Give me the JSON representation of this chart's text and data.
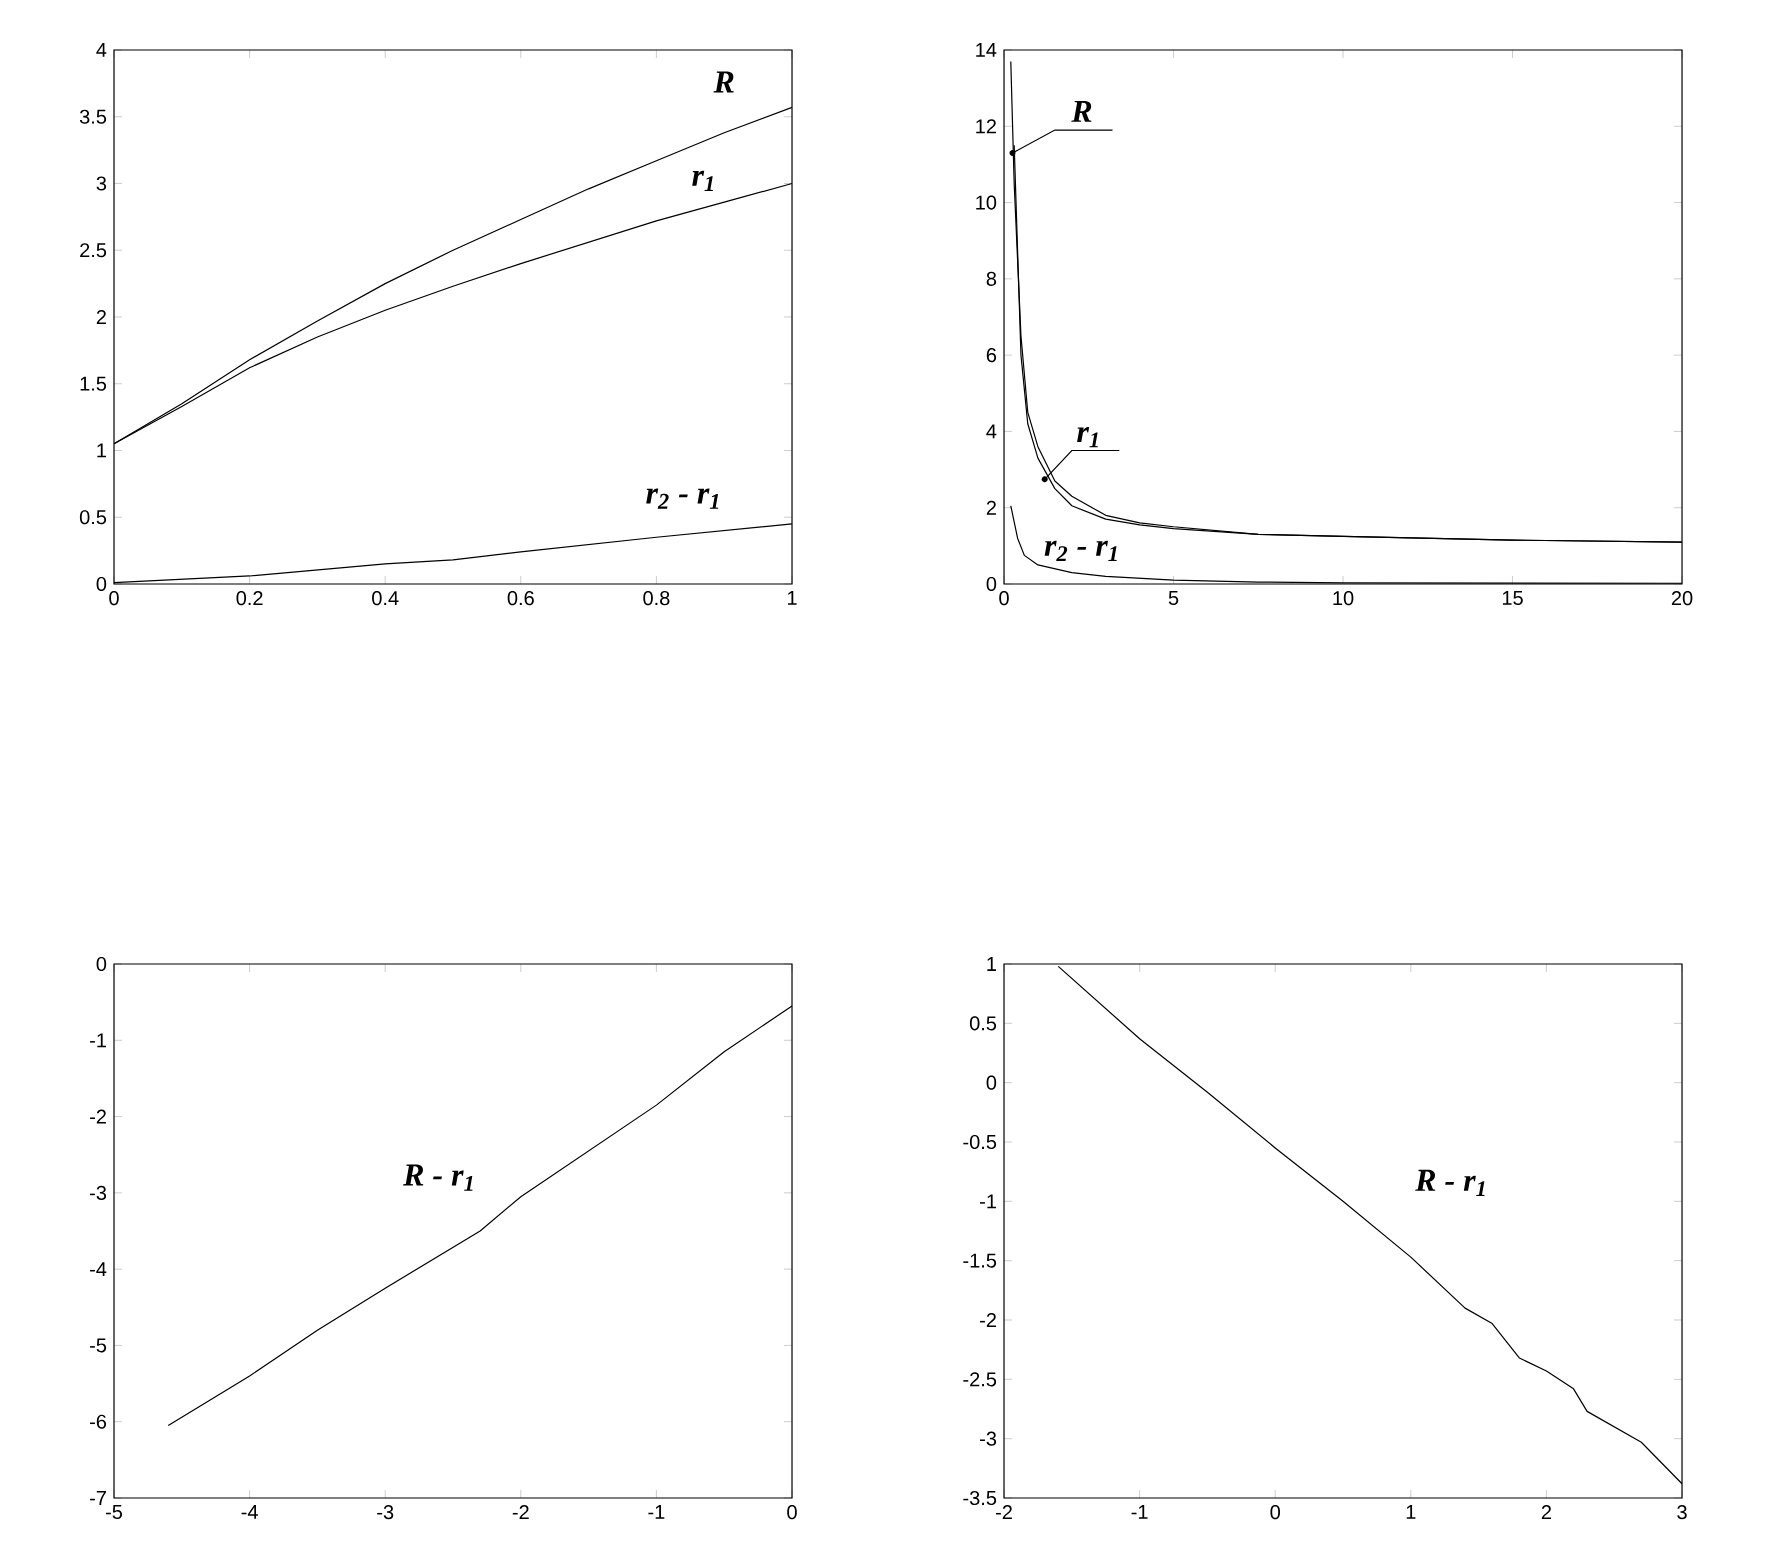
{
  "chart_data": [
    {
      "type": "line",
      "xlim": [
        0,
        1
      ],
      "ylim": [
        0,
        4
      ],
      "xticks": [
        0,
        0.2,
        0.4,
        0.6,
        0.8,
        1
      ],
      "yticks": [
        0,
        0.5,
        1,
        1.5,
        2,
        2.5,
        3,
        3.5,
        4
      ],
      "grid": false,
      "line_style": "solid",
      "series": [
        {
          "name": "R",
          "color": "#000000",
          "x": [
            0,
            0.1,
            0.2,
            0.3,
            0.4,
            0.5,
            0.6,
            0.7,
            0.8,
            0.9,
            1
          ],
          "values": [
            1.05,
            1.35,
            1.68,
            1.97,
            2.25,
            2.5,
            2.73,
            2.96,
            3.17,
            3.38,
            3.57
          ]
        },
        {
          "name": "r$_{1}$",
          "color": "#000000",
          "x": [
            0,
            0.1,
            0.2,
            0.3,
            0.4,
            0.5,
            0.6,
            0.7,
            0.8,
            0.9,
            1
          ],
          "values": [
            1.05,
            1.33,
            1.62,
            1.85,
            2.05,
            2.23,
            2.4,
            2.56,
            2.72,
            2.86,
            3.0
          ]
        },
        {
          "name": "r$_{2}$ - r$_{1}$",
          "color": "#000000",
          "x": [
            0,
            0.2,
            0.4,
            0.5,
            0.6,
            0.8,
            1
          ],
          "values": [
            0.01,
            0.06,
            0.15,
            0.18,
            0.24,
            0.35,
            0.45
          ]
        }
      ]
    },
    {
      "type": "line",
      "xlim": [
        0,
        20
      ],
      "ylim": [
        0,
        14
      ],
      "xticks": [
        0,
        5,
        10,
        15,
        20
      ],
      "yticks": [
        0,
        2,
        4,
        6,
        8,
        10,
        12,
        14
      ],
      "grid": false,
      "line_style": "solid",
      "series": [
        {
          "name": "R",
          "color": "#000000",
          "x": [
            0.2,
            0.3,
            0.5,
            0.7,
            1,
            1.5,
            2,
            3,
            4,
            5,
            7.5,
            10,
            15,
            20
          ],
          "values": [
            13.7,
            10.5,
            6.5,
            4.5,
            3.6,
            2.7,
            2.3,
            1.8,
            1.6,
            1.5,
            1.3,
            1.25,
            1.15,
            1.1
          ]
        },
        {
          "name": "r$_{1}$",
          "color": "#000000",
          "x": [
            0.3,
            0.5,
            0.7,
            1,
            1.5,
            2,
            3,
            4,
            5,
            7.5,
            10,
            15,
            20
          ],
          "values": [
            11.5,
            6,
            4.2,
            3.3,
            2.5,
            2.05,
            1.7,
            1.55,
            1.45,
            1.3,
            1.25,
            1.15,
            1.1
          ]
        },
        {
          "name": "r$_{2}$ - r$_{1}$",
          "color": "#000000",
          "x": [
            0.2,
            0.4,
            0.6,
            1,
            2,
            3,
            5,
            7.5,
            10,
            20
          ],
          "values": [
            2.05,
            1.2,
            0.75,
            0.5,
            0.3,
            0.2,
            0.1,
            0.05,
            0.03,
            0.02
          ]
        }
      ]
    },
    {
      "type": "line",
      "xlim": [
        -5,
        0
      ],
      "ylim": [
        -7,
        0
      ],
      "xticks": [
        -5,
        -4,
        -3,
        -2,
        -1,
        0
      ],
      "yticks": [
        -7,
        -6,
        -5,
        -4,
        -3,
        -2,
        -1,
        0
      ],
      "grid": false,
      "line_style": "solid",
      "series": [
        {
          "name": "R - r$_{1}$",
          "color": "#000000",
          "x": [
            -4.6,
            -4,
            -3.5,
            -3,
            -2.3,
            -2,
            -1.5,
            -1,
            -0.5,
            0
          ],
          "values": [
            -6.05,
            -5.4,
            -4.8,
            -4.25,
            -3.5,
            -3.05,
            -2.45,
            -1.85,
            -1.15,
            -0.55
          ]
        }
      ]
    },
    {
      "type": "line",
      "xlim": [
        -2,
        3
      ],
      "ylim": [
        -3.5,
        1
      ],
      "xticks": [
        -2,
        -1,
        0,
        1,
        2,
        3
      ],
      "yticks": [
        -3.5,
        -3,
        -2.5,
        -2,
        -1.5,
        -1,
        -0.5,
        0,
        0.5,
        1
      ],
      "grid": false,
      "line_style": "solid",
      "series": [
        {
          "name": "R - r$_{1}$",
          "color": "#000000",
          "x": [
            -1.6,
            -1,
            -0.5,
            0,
            0.5,
            1,
            1.4,
            1.6,
            1.8,
            2,
            2.2,
            2.3,
            2.7,
            3
          ],
          "values": [
            0.98,
            0.37,
            -0.08,
            -0.55,
            -1.0,
            -1.47,
            -1.9,
            -2.03,
            -2.32,
            -2.43,
            -2.58,
            -2.77,
            -3.03,
            -3.38
          ]
        }
      ]
    }
  ]
}
